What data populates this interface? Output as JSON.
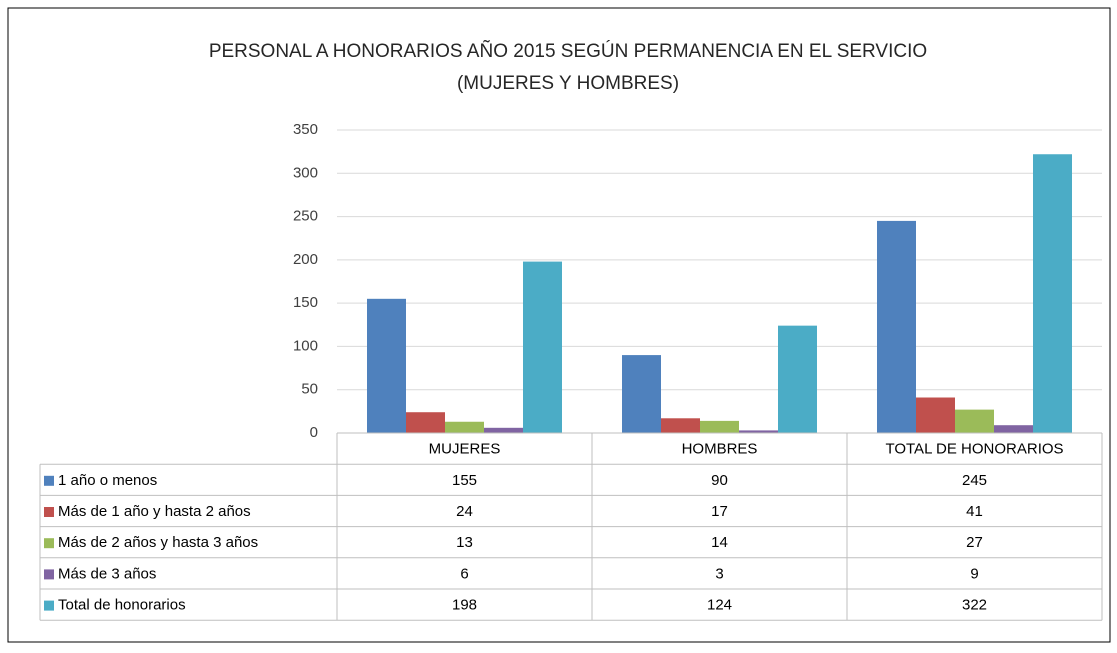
{
  "chart_data": {
    "type": "bar",
    "title": "PERSONAL A HONORARIOS AÑO 2015 SEGÚN PERMANENCIA EN EL SERVICIO",
    "subtitle": "(MUJERES Y HOMBRES)",
    "categories": [
      "MUJERES",
      "HOMBRES",
      "TOTAL DE HONORARIOS"
    ],
    "series": [
      {
        "name": "1 año o menos",
        "color": "#4f81bd",
        "values": [
          155,
          90,
          245
        ]
      },
      {
        "name": "Más de 1 año y hasta 2 años",
        "color": "#c0504d",
        "values": [
          24,
          17,
          41
        ]
      },
      {
        "name": "Más de 2 años y hasta 3 años",
        "color": "#9bbb59",
        "values": [
          13,
          14,
          27
        ]
      },
      {
        "name": "Más de 3 años",
        "color": "#8064a2",
        "values": [
          6,
          3,
          9
        ]
      },
      {
        "name": "Total de honorarios",
        "color": "#4bacc6",
        "values": [
          198,
          124,
          322
        ]
      }
    ],
    "ylim": [
      0,
      350
    ],
    "yticks": [
      0,
      50,
      100,
      150,
      200,
      250,
      300,
      350
    ],
    "grid": true,
    "data_table": true
  }
}
